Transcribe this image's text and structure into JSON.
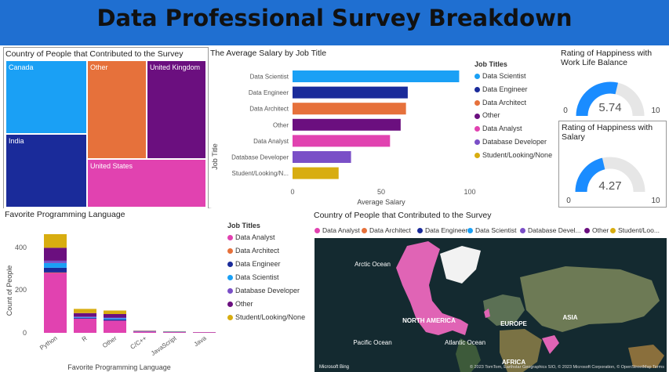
{
  "header": {
    "title": "Data Professional Survey Breakdown"
  },
  "colors": {
    "Data Scientist": "#1aa0f5",
    "Data Engineer": "#1a2b9a",
    "Data Architect": "#e6713b",
    "Other": "#6b0f7f",
    "Data Analyst": "#e142b0",
    "Database Developer": "#7a4fc7",
    "Student/Looking/None": "#d8ad10"
  },
  "treemap": {
    "title": "Country of People that Contributed to the Survey",
    "tiles": [
      "Canada",
      "Other",
      "United Kingdom",
      "India",
      "United States"
    ]
  },
  "salary": {
    "title": "The Average Salary by Job Title",
    "xlabel": "Average Salary",
    "ylabel": "Job Title",
    "legend_title": "Job Titles",
    "ticks": [
      "0",
      "50",
      "100"
    ]
  },
  "gauge1": {
    "title": "Rating of Happiness with Work Life Balance",
    "value": "5.74",
    "min": "0",
    "max": "10"
  },
  "gauge2": {
    "title": "Rating of Happiness with Salary",
    "value": "4.27",
    "min": "0",
    "max": "10"
  },
  "lang": {
    "title": "Favorite Programming Language",
    "xlabel": "Favorite Programming Language",
    "ylabel": "Count of People",
    "legend_title": "Job Titles",
    "yticks": [
      "0",
      "200",
      "400"
    ]
  },
  "map": {
    "title": "Country of People that Contributed to the Survey",
    "legend": [
      "Data Analyst",
      "Data Architect",
      "Data Engineer",
      "Data Scientist",
      "Database Devel...",
      "Other",
      "Student/Loo..."
    ],
    "labels": {
      "arctic": "Arctic Ocean",
      "na": "NORTH AMERICA",
      "europe": "EUROPE",
      "asia": "ASIA",
      "pacific": "Pacific Ocean",
      "atlantic": "Atlantic Ocean",
      "africa": "AFRICA"
    },
    "bing": "Microsoft Bing",
    "attribution": "© 2023 TomTom, Earthstar Geographics SIO, © 2023 Microsoft Corporation, © OpenStreetMap  Terms"
  },
  "chart_data": [
    {
      "type": "bar",
      "title": "The Average Salary by Job Title",
      "xlabel": "Average Salary",
      "ylabel": "Job Title",
      "categories": [
        "Data Scientist",
        "Data Engineer",
        "Data Architect",
        "Other",
        "Data Analyst",
        "Database Developer",
        "Student/Looking/N..."
      ],
      "values": [
        94,
        65,
        64,
        61,
        55,
        33,
        26
      ],
      "xlim": [
        0,
        100
      ]
    },
    {
      "type": "bar",
      "title": "Favorite Programming Language",
      "xlabel": "Favorite Programming Language",
      "ylabel": "Count of People",
      "categories": [
        "Python",
        "R",
        "Other",
        "C/C++",
        "JavaScript",
        "Java"
      ],
      "series": [
        {
          "name": "Data Analyst",
          "values": [
            255,
            60,
            52,
            5,
            3,
            2
          ]
        },
        {
          "name": "Data Architect",
          "values": [
            2,
            0,
            0,
            0,
            0,
            0
          ]
        },
        {
          "name": "Data Engineer",
          "values": [
            20,
            3,
            5,
            1,
            1,
            0
          ]
        },
        {
          "name": "Data Scientist",
          "values": [
            20,
            3,
            5,
            1,
            1,
            0
          ]
        },
        {
          "name": "Database Developer",
          "values": [
            10,
            3,
            3,
            1,
            0,
            0
          ]
        },
        {
          "name": "Other",
          "values": [
            55,
            15,
            15,
            1,
            1,
            1
          ]
        },
        {
          "name": "Student/Looking/None",
          "values": [
            58,
            18,
            15,
            1,
            1,
            0
          ]
        }
      ],
      "ylim": [
        0,
        450
      ]
    },
    {
      "type": "gauge",
      "title": "Rating of Happiness with Work Life Balance",
      "value": 5.74,
      "min": 0,
      "max": 10
    },
    {
      "type": "gauge",
      "title": "Rating of Happiness with Salary",
      "value": 4.27,
      "min": 0,
      "max": 10
    }
  ]
}
